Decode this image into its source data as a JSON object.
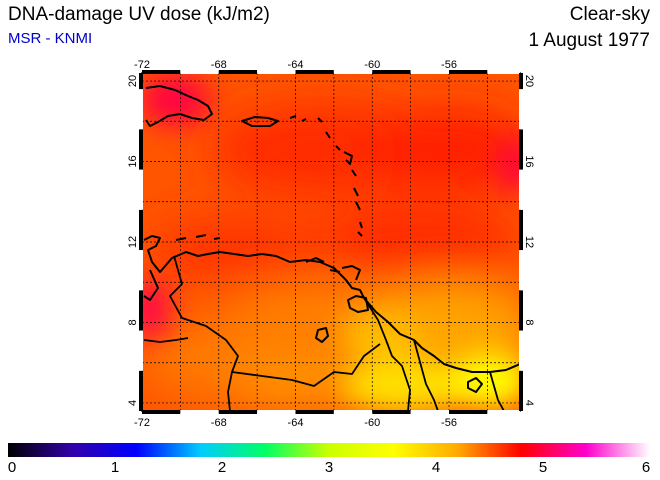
{
  "header": {
    "title": "DNA-damage UV dose (kJ/m2)",
    "source": "MSR - KNMI",
    "sky": "Clear-sky",
    "date": "1 August 1977"
  },
  "map": {
    "lon_ticks": [
      "-72",
      "-68",
      "-64",
      "-60",
      "-56"
    ],
    "lat_ticks": [
      "4",
      "8",
      "12",
      "16",
      "20"
    ],
    "lon_range": [
      -72,
      -52.3
    ],
    "lat_range": [
      3.6,
      20.4
    ]
  },
  "colorbar": {
    "labels": [
      "0",
      "1",
      "2",
      "3",
      "4",
      "5",
      "6"
    ],
    "range": [
      0,
      6
    ],
    "stops": [
      "#000000",
      "#3300aa",
      "#0000ff",
      "#00ccff",
      "#00ff66",
      "#ccff00",
      "#ffff00",
      "#ffaa00",
      "#ff0000",
      "#ff00cc",
      "#ffffff"
    ]
  }
}
